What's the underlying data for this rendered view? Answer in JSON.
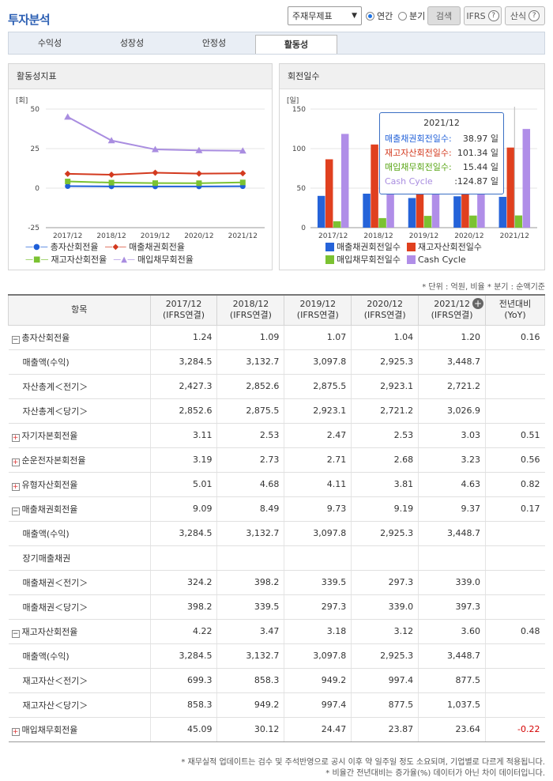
{
  "header": {
    "title": "투자분석",
    "select_value": "주재무제표",
    "radio_annual": "연간",
    "radio_quarter": "분기",
    "search_btn": "검색",
    "ifrs_btn": "IFRS",
    "formula_btn": "산식"
  },
  "tabs": [
    "수익성",
    "성장성",
    "안정성",
    "활동성"
  ],
  "active_tab": 3,
  "left_chart": {
    "title": "활동성지표",
    "unit": "[회]",
    "chart_data": {
      "type": "line",
      "categories": [
        "2017/12",
        "2018/12",
        "2019/12",
        "2020/12",
        "2021/12"
      ],
      "ylim": [
        -25,
        50
      ],
      "yticks": [
        "50",
        "25",
        "0",
        "-25"
      ],
      "series": [
        {
          "name": "총자산회전율",
          "color": "#1f5fd8",
          "values": [
            1.24,
            1.09,
            1.07,
            1.04,
            1.2
          ]
        },
        {
          "name": "매출채권회전율",
          "color": "#d33a1f",
          "values": [
            9.09,
            8.49,
            9.73,
            9.19,
            9.37
          ]
        },
        {
          "name": "재고자산회전율",
          "color": "#7bc232",
          "values": [
            4.22,
            3.47,
            3.18,
            3.12,
            3.6
          ]
        },
        {
          "name": "매입채무회전율",
          "color": "#a98de0",
          "values": [
            45.09,
            30.12,
            24.47,
            23.87,
            23.64
          ]
        }
      ]
    }
  },
  "right_chart": {
    "title": "회전일수",
    "unit": "[일]",
    "chart_data": {
      "type": "bar",
      "categories": [
        "2017/12",
        "2018/12",
        "2019/12",
        "2020/12",
        "2021/12"
      ],
      "ylim": [
        0,
        150
      ],
      "yticks": [
        "150",
        "100",
        "50",
        "0"
      ],
      "series": [
        {
          "name": "매출채권회전일수",
          "color": "#2563d9",
          "values": [
            40.2,
            43.0,
            37.5,
            39.7,
            38.97
          ]
        },
        {
          "name": "재고자산회전일수",
          "color": "#e0401f",
          "values": [
            86.5,
            105.2,
            114.8,
            117.0,
            101.34
          ]
        },
        {
          "name": "매입채무회전일수",
          "color": "#7bc232",
          "values": [
            8.1,
            12.1,
            14.9,
            15.3,
            15.44
          ]
        },
        {
          "name": "Cash Cycle",
          "color": "#b08ee8",
          "values": [
            118.6,
            136.1,
            137.4,
            141.4,
            124.87
          ]
        }
      ]
    },
    "tooltip": {
      "title": "2021/12",
      "rows": [
        {
          "label": "매출채권회전일수:",
          "value": "38.97",
          "unit": "일",
          "color": "#2563d9"
        },
        {
          "label": "재고자산회전일수:",
          "value": "101.34",
          "unit": "일",
          "color": "#d33a1f"
        },
        {
          "label": "매입채무회전일수:",
          "value": "15.44",
          "unit": "일",
          "color": "#5aa617"
        },
        {
          "label": "Cash Cycle",
          "value": ":124.87",
          "unit": "일",
          "color": "#a98de0"
        }
      ]
    }
  },
  "unit_note": "* 단위 : 억원, 비율   * 분기 : 순액기준",
  "table": {
    "headers": [
      "항목",
      "2017/12\n(IFRS연결)",
      "2018/12\n(IFRS연결)",
      "2019/12\n(IFRS연결)",
      "2020/12\n(IFRS연결)",
      "2021/12\n(IFRS연결)",
      "전년대비\n(YoY)"
    ],
    "rows": [
      {
        "label": "총자산회전율",
        "toggle": "minus",
        "values": [
          "1.24",
          "1.09",
          "1.07",
          "1.04",
          "1.20",
          "0.16"
        ]
      },
      {
        "label": "매출액(수익)",
        "sub": true,
        "values": [
          "3,284.5",
          "3,132.7",
          "3,097.8",
          "2,925.3",
          "3,448.7",
          ""
        ]
      },
      {
        "label": "자산총계＜전기＞",
        "sub": true,
        "values": [
          "2,427.3",
          "2,852.6",
          "2,875.5",
          "2,923.1",
          "2,721.2",
          ""
        ]
      },
      {
        "label": "자산총계＜당기＞",
        "sub": true,
        "values": [
          "2,852.6",
          "2,875.5",
          "2,923.1",
          "2,721.2",
          "3,026.9",
          ""
        ]
      },
      {
        "label": "자기자본회전율",
        "toggle": "plus",
        "values": [
          "3.11",
          "2.53",
          "2.47",
          "2.53",
          "3.03",
          "0.51"
        ]
      },
      {
        "label": "순운전자본회전율",
        "toggle": "plus",
        "values": [
          "3.19",
          "2.73",
          "2.71",
          "2.68",
          "3.23",
          "0.56"
        ]
      },
      {
        "label": "유형자산회전율",
        "toggle": "plus",
        "values": [
          "5.01",
          "4.68",
          "4.11",
          "3.81",
          "4.63",
          "0.82"
        ]
      },
      {
        "label": "매출채권회전율",
        "toggle": "minus",
        "values": [
          "9.09",
          "8.49",
          "9.73",
          "9.19",
          "9.37",
          "0.17"
        ]
      },
      {
        "label": "매출액(수익)",
        "sub": true,
        "values": [
          "3,284.5",
          "3,132.7",
          "3,097.8",
          "2,925.3",
          "3,448.7",
          ""
        ]
      },
      {
        "label": "장기매출채권",
        "sub": true,
        "values": [
          "",
          "",
          "",
          "",
          "",
          ""
        ]
      },
      {
        "label": "매출채권＜전기＞",
        "sub": true,
        "values": [
          "324.2",
          "398.2",
          "339.5",
          "297.3",
          "339.0",
          ""
        ]
      },
      {
        "label": "매출채권＜당기＞",
        "sub": true,
        "values": [
          "398.2",
          "339.5",
          "297.3",
          "339.0",
          "397.3",
          ""
        ]
      },
      {
        "label": "재고자산회전율",
        "toggle": "minus",
        "values": [
          "4.22",
          "3.47",
          "3.18",
          "3.12",
          "3.60",
          "0.48"
        ]
      },
      {
        "label": "매출액(수익)",
        "sub": true,
        "values": [
          "3,284.5",
          "3,132.7",
          "3,097.8",
          "2,925.3",
          "3,448.7",
          ""
        ]
      },
      {
        "label": "재고자산＜전기＞",
        "sub": true,
        "values": [
          "699.3",
          "858.3",
          "949.2",
          "997.4",
          "877.5",
          ""
        ]
      },
      {
        "label": "재고자산＜당기＞",
        "sub": true,
        "values": [
          "858.3",
          "949.2",
          "997.4",
          "877.5",
          "1,037.5",
          ""
        ]
      },
      {
        "label": "매입채무회전율",
        "toggle": "plus",
        "values": [
          "45.09",
          "30.12",
          "24.47",
          "23.87",
          "23.64",
          "-0.22"
        ]
      }
    ]
  },
  "footnotes": [
    "* 재무실적 업데이트는 검수 및 주석반영으로 공시 이후 약 일주일 정도 소요되며, 기업별로 다르게 적용됩니다.",
    "* 비율간 전년대비는 증가율(%) 데이터가 아닌 차이 데이터입니다."
  ]
}
